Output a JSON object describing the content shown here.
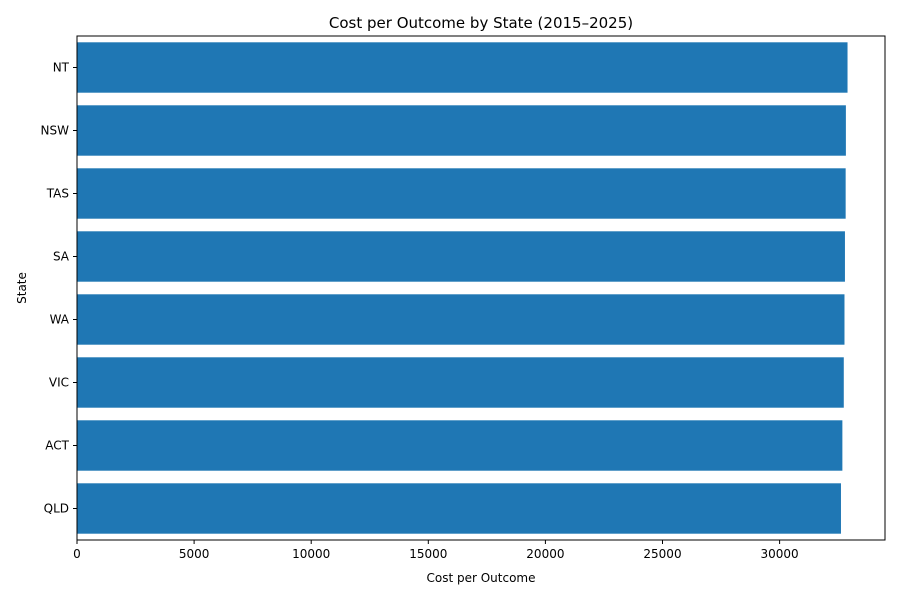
{
  "chart_data": {
    "type": "bar",
    "orientation": "horizontal",
    "title": "Cost per Outcome by State (2015–2025)",
    "xlabel": "Cost per Outcome",
    "ylabel": "State",
    "categories": [
      "QLD",
      "ACT",
      "VIC",
      "WA",
      "SA",
      "TAS",
      "NSW",
      "NT"
    ],
    "values": [
      32620,
      32680,
      32740,
      32770,
      32790,
      32820,
      32830,
      32900
    ],
    "xlim": [
      0,
      34500
    ],
    "xticks": [
      0,
      5000,
      10000,
      15000,
      20000,
      25000,
      30000
    ],
    "grid": false,
    "legend": "none",
    "colors": {
      "bar": "#1f77b4",
      "axis": "#000000"
    }
  }
}
